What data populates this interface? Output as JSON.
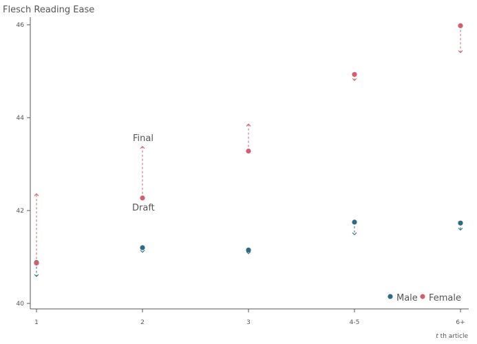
{
  "chart_data": {
    "type": "scatter",
    "ylabel": "Flesch Reading Ease",
    "xlabel": "t th article",
    "xlabel_italic": "t",
    "xlabel_rest": " th article",
    "categories": [
      "1",
      "2",
      "3",
      "4-5",
      "6+"
    ],
    "ylim": [
      39.85,
      46.3
    ],
    "yticks": [
      40,
      42,
      44,
      46
    ],
    "grid": false,
    "legend_position": "bottom-right",
    "annotations": {
      "final": "Final",
      "draft": "Draft"
    },
    "series": [
      {
        "name": "Male",
        "color": "#2b6b84",
        "draft": [
          40.88,
          41.2,
          41.15,
          41.75,
          41.73
        ],
        "final": [
          40.58,
          41.1,
          41.07,
          41.48,
          41.58
        ]
      },
      {
        "name": "Female",
        "color": "#d35f6d",
        "draft": [
          40.87,
          42.27,
          43.28,
          44.93,
          45.98
        ],
        "final": [
          42.36,
          43.38,
          43.86,
          44.8,
          45.4
        ]
      }
    ]
  }
}
